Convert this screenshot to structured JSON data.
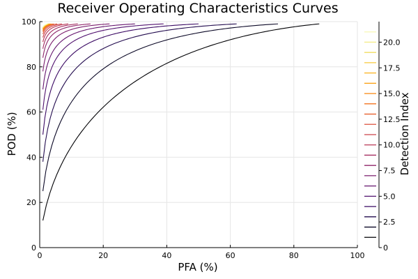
{
  "chart_data": {
    "type": "line",
    "title": "Receiver Operating Characteristics Curves",
    "xlabel": "PFA (%)",
    "ylabel": "POD (%)",
    "xlim": [
      0,
      100
    ],
    "ylim": [
      0,
      100
    ],
    "x_ticks": [
      "0",
      "20",
      "40",
      "60",
      "80",
      "100"
    ],
    "y_ticks": [
      "0",
      "20",
      "40",
      "60",
      "80",
      "100"
    ],
    "grid": true,
    "colorbar": {
      "label": "Detection Index",
      "lim": [
        0,
        22
      ],
      "ticks": [
        "0",
        "2.5",
        "5.0",
        "7.5",
        "10.0",
        "12.5",
        "15.0",
        "17.5",
        "20.0"
      ],
      "colormap": "inferno-like"
    },
    "pfa_values": [
      1,
      2,
      4,
      6,
      8,
      10,
      15,
      20,
      25,
      30,
      35,
      40,
      45,
      50,
      55,
      60,
      65,
      70,
      75,
      80,
      85,
      88
    ],
    "series": [
      {
        "detection_index": 1,
        "x_max": 88,
        "color": "#000004"
      },
      {
        "detection_index": 2,
        "x_max": 75,
        "color": "#0b0826"
      },
      {
        "detection_index": 3,
        "x_max": 62,
        "color": "#220b4e"
      },
      {
        "detection_index": 4,
        "x_max": 50,
        "color": "#3a0963"
      },
      {
        "detection_index": 5,
        "x_max": 39,
        "color": "#50106e"
      },
      {
        "detection_index": 6,
        "x_max": 30,
        "color": "#65156e"
      },
      {
        "detection_index": 7,
        "x_max": 22,
        "color": "#7a1d6d"
      },
      {
        "detection_index": 8,
        "x_max": 16,
        "color": "#8f2469"
      },
      {
        "detection_index": 9,
        "x_max": 12,
        "color": "#a42c60"
      },
      {
        "detection_index": 10,
        "x_max": 9,
        "color": "#b83655"
      },
      {
        "detection_index": 11,
        "x_max": 7,
        "color": "#cb4149"
      },
      {
        "detection_index": 12,
        "x_max": 5.5,
        "color": "#db503b"
      },
      {
        "detection_index": 13,
        "x_max": 4.5,
        "color": "#e8602d"
      },
      {
        "detection_index": 14,
        "x_max": 4,
        "color": "#f3731e"
      },
      {
        "detection_index": 15,
        "x_max": 3.5,
        "color": "#f8870e"
      },
      {
        "detection_index": 16,
        "x_max": 3.2,
        "color": "#fb9c06"
      },
      {
        "detection_index": 17,
        "x_max": 3,
        "color": "#fbb21a"
      },
      {
        "detection_index": 18,
        "x_max": 2.8,
        "color": "#f7c83a"
      },
      {
        "detection_index": 19,
        "x_max": 2.6,
        "color": "#f1dc5f"
      },
      {
        "detection_index": 20,
        "x_max": 2.5,
        "color": "#f3ec8a"
      },
      {
        "detection_index": 21,
        "x_max": 2.4,
        "color": "#f8f7b5"
      }
    ]
  }
}
